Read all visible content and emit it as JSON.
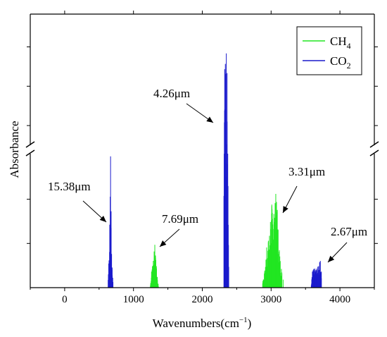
{
  "chart_data": {
    "type": "line",
    "xlabel": "Wavenumbers(cm",
    "xlabel_superscript": "−1",
    "xlabel_suffix": ")",
    "ylabel": "Absorbance",
    "xlim": [
      -500,
      4500
    ],
    "xticks": [
      0,
      1000,
      2000,
      3000,
      4000
    ],
    "ylim_lower_segment": [
      0,
      1
    ],
    "ylim_upper_segment": [
      1,
      2
    ],
    "axis_break": true,
    "yticks_labeled": false,
    "legend": {
      "placement": "top-right",
      "entries": [
        "CH_4",
        "CO_2"
      ]
    },
    "colors": {
      "CH4": "#22e622",
      "CO2": "#1a1acc"
    },
    "series": [
      {
        "name": "CH_4",
        "bands": [
          {
            "center": 1306,
            "halfwidth": 60,
            "peak": 0.32,
            "lines": [
              [
                1262,
                0.12
              ],
              [
                1275,
                0.16
              ],
              [
                1288,
                0.2
              ],
              [
                1300,
                0.27
              ],
              [
                1310,
                0.32
              ],
              [
                1320,
                0.24
              ],
              [
                1333,
                0.16
              ],
              [
                1346,
                0.08
              ]
            ]
          },
          {
            "center": 3017,
            "halfwidth": 140,
            "peak": 0.7,
            "lines": [
              [
                2880,
                0.05
              ],
              [
                2905,
                0.12
              ],
              [
                2935,
                0.3
              ],
              [
                2960,
                0.35
              ],
              [
                2990,
                0.49
              ],
              [
                3010,
                0.62
              ],
              [
                3040,
                0.55
              ],
              [
                3068,
                0.7
              ],
              [
                3090,
                0.58
              ],
              [
                3120,
                0.28
              ],
              [
                3150,
                0.14
              ],
              [
                3175,
                0.06
              ]
            ]
          }
        ]
      },
      {
        "name": "CO_2",
        "bands": [
          {
            "center": 667,
            "halfwidth": 35,
            "peak": 0.98,
            "lines": [
              [
                640,
                0.18
              ],
              [
                655,
                0.47
              ],
              [
                667,
                0.98
              ],
              [
                675,
                0.57
              ],
              [
                690,
                0.15
              ]
            ]
          },
          {
            "center": 2349,
            "halfwidth": 35,
            "peak": 1.7,
            "lines": [
              [
                2318,
                1.0
              ],
              [
                2325,
                1.58
              ],
              [
                2335,
                1.62
              ],
              [
                2349,
                1.7
              ],
              [
                2360,
                1.55
              ],
              [
                2370,
                1.0
              ]
            ]
          },
          {
            "center": 3650,
            "halfwidth": 80,
            "peak": 0.2,
            "lines": [
              [
                3600,
                0.12
              ],
              [
                3610,
                0.13
              ],
              [
                3620,
                0.14
              ],
              [
                3690,
                0.16
              ],
              [
                3705,
                0.19
              ],
              [
                3715,
                0.2
              ],
              [
                3730,
                0.12
              ]
            ]
          }
        ]
      }
    ],
    "annotations": [
      {
        "text": "15.38μm",
        "target_x": 667,
        "target_y": 0.5
      },
      {
        "text": "7.69μm",
        "target_x": 1310,
        "target_y": 0.3
      },
      {
        "text": "4.26μm",
        "target_x": 2349,
        "target_y": 1.18
      },
      {
        "text": "3.31μm",
        "target_x": 3068,
        "target_y": 0.55
      },
      {
        "text": "2.67μm",
        "target_x": 3710,
        "target_y": 0.19
      }
    ]
  }
}
